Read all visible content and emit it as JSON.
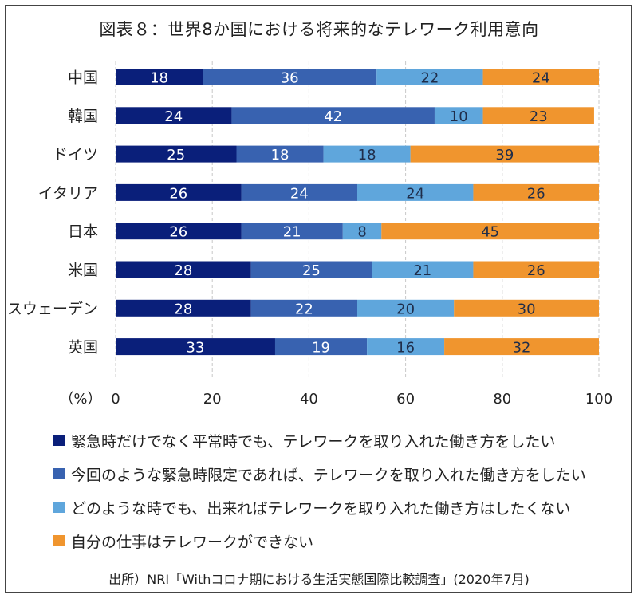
{
  "title": "図表８：世界8か国における将来的なテレワーク利用意向",
  "source": "出所）NRI「Withコロナ期における生活実態国際比較調査」(2020年7月)",
  "chart_data": {
    "type": "bar",
    "orientation": "horizontal",
    "stacked": true,
    "categories": [
      "中国",
      "韓国",
      "ドイツ",
      "イタリア",
      "日本",
      "米国",
      "スウェーデン",
      "英国"
    ],
    "series": [
      {
        "name": "緊急時だけでなく平常時でも、テレワークを取り入れた働き方をしたい",
        "color": "#0a1f7a",
        "values": [
          18,
          24,
          25,
          26,
          26,
          28,
          28,
          33
        ]
      },
      {
        "name": "今回のような緊急時限定であれば、テレワークを取り入れた働き方をしたい",
        "color": "#3862b0",
        "values": [
          36,
          42,
          18,
          24,
          21,
          25,
          22,
          19
        ]
      },
      {
        "name": "どのような時でも、出来ればテレワークを取り入れた働き方はしたくない",
        "color": "#5fa6dc",
        "values": [
          22,
          10,
          18,
          24,
          8,
          21,
          20,
          16
        ]
      },
      {
        "name": "自分の仕事はテレワークができない",
        "color": "#f0952e",
        "values": [
          24,
          23,
          39,
          26,
          45,
          26,
          30,
          32
        ]
      }
    ],
    "xlim": [
      0,
      100
    ],
    "xticks": [
      0,
      20,
      40,
      60,
      80,
      100
    ],
    "xunit_label": "（%）",
    "grid": "vertical-dashed",
    "legend_position": "bottom"
  }
}
